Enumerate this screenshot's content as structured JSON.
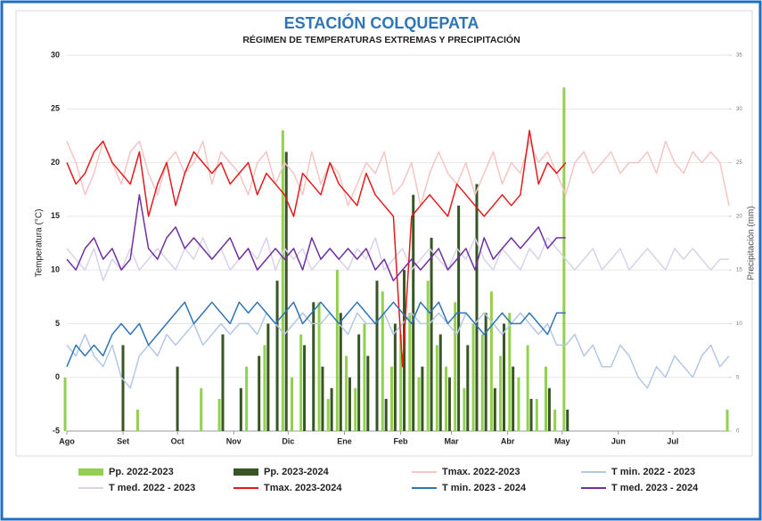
{
  "chart_data": {
    "type": "line",
    "title": "ESTACIÓN COLQUEPATA",
    "subtitle": "RÉGIMEN DE TEMPERATURAS EXTREMAS Y PRECIPITACIÓN",
    "y_label": "Temperatura (°C)",
    "y2_label": "Precipitación (mm)",
    "x": [
      0,
      5,
      10,
      15,
      20,
      25,
      30,
      35,
      40,
      45,
      50,
      55,
      60,
      65,
      70,
      75,
      80,
      85,
      90,
      95,
      100,
      105,
      110,
      115,
      120,
      125,
      130,
      135,
      140,
      145,
      150,
      155,
      160,
      165,
      170,
      175,
      180,
      185,
      190,
      195,
      200,
      205,
      210,
      215,
      220,
      225,
      230,
      235,
      240,
      245,
      250,
      255,
      260,
      265,
      270,
      275,
      280,
      285,
      290,
      295,
      300,
      305,
      310,
      315,
      320,
      325,
      330,
      335,
      340,
      345,
      350,
      355,
      360,
      365
    ],
    "xlim": [
      0,
      365
    ],
    "xticks": [
      {
        "value": 0,
        "label": "Ago"
      },
      {
        "value": 31,
        "label": "Set"
      },
      {
        "value": 61,
        "label": "Oct"
      },
      {
        "value": 92,
        "label": "Nov"
      },
      {
        "value": 122,
        "label": "Dic"
      },
      {
        "value": 153,
        "label": "Ene"
      },
      {
        "value": 184,
        "label": "Feb"
      },
      {
        "value": 212,
        "label": "Mar"
      },
      {
        "value": 243,
        "label": "Abr"
      },
      {
        "value": 273,
        "label": "May"
      },
      {
        "value": 304,
        "label": "Jun"
      },
      {
        "value": 334,
        "label": "Jul"
      }
    ],
    "ylim": [
      -5,
      30
    ],
    "yticks": [
      -5,
      0,
      5,
      10,
      15,
      20,
      25,
      30
    ],
    "y2lim": [
      0,
      35
    ],
    "y2ticks": [
      0,
      5,
      10,
      15,
      20,
      25,
      30,
      35
    ],
    "grid": true,
    "series": [
      {
        "name": "Pp. 2022-2023",
        "type": "bar",
        "axis": "y2",
        "color": "#92d050",
        "values": [
          5,
          0,
          0,
          0,
          0,
          0,
          0,
          0,
          2,
          0,
          0,
          0,
          0,
          0,
          0,
          4,
          0,
          3,
          0,
          0,
          6,
          0,
          8,
          0,
          28,
          5,
          9,
          0,
          12,
          3,
          15,
          7,
          4,
          10,
          0,
          13,
          6,
          9,
          11,
          5,
          14,
          8,
          6,
          12,
          4,
          10,
          9,
          13,
          7,
          11,
          5,
          8,
          3,
          6,
          2,
          32,
          0,
          0,
          0,
          0,
          0,
          0,
          0,
          0,
          0,
          0,
          0,
          0,
          0,
          0,
          0,
          0,
          0,
          2
        ]
      },
      {
        "name": "Pp. 2023-2024",
        "type": "bar",
        "axis": "y2",
        "color": "#375623",
        "values": [
          0,
          0,
          0,
          0,
          0,
          0,
          8,
          0,
          0,
          0,
          0,
          0,
          6,
          0,
          0,
          0,
          0,
          9,
          0,
          4,
          0,
          7,
          10,
          14,
          26,
          0,
          8,
          12,
          6,
          4,
          11,
          5,
          9,
          7,
          14,
          3,
          10,
          15,
          22,
          6,
          18,
          9,
          5,
          21,
          8,
          23,
          11,
          4,
          10,
          6,
          0,
          3,
          0,
          4,
          0,
          2,
          null,
          null,
          null,
          null,
          null,
          null,
          null,
          null,
          null,
          null,
          null,
          null,
          null,
          null,
          null,
          null,
          null,
          null
        ]
      },
      {
        "name": "Tmax. 2022-2023",
        "color": "#f7c4c4",
        "values": [
          22,
          20,
          17,
          19,
          22,
          20,
          18,
          21,
          22,
          19,
          17,
          20,
          21,
          19,
          20,
          22,
          18,
          21,
          20,
          19,
          17,
          20,
          21,
          18,
          20,
          19,
          17,
          21,
          18,
          20,
          19,
          16,
          18,
          20,
          19,
          21,
          17,
          18,
          20,
          16,
          19,
          21,
          19,
          18,
          20,
          17,
          19,
          21,
          18,
          20,
          19,
          22,
          20,
          21,
          19,
          17,
          20,
          21,
          19,
          20,
          21,
          19,
          20,
          20,
          21,
          19,
          22,
          20,
          19,
          21,
          20,
          21,
          20,
          16
        ]
      },
      {
        "name": "T min. 2022 - 2023",
        "color": "#b4c7e7",
        "values": [
          3,
          2,
          4,
          2,
          1,
          3,
          0,
          -1,
          2,
          3,
          2,
          4,
          3,
          4,
          5,
          3,
          4,
          5,
          4,
          5,
          5,
          4,
          6,
          5,
          4,
          5,
          6,
          5,
          5,
          6,
          5,
          4,
          6,
          5,
          5,
          6,
          4,
          5,
          6,
          5,
          5,
          6,
          5,
          4,
          6,
          5,
          6,
          5,
          4,
          5,
          6,
          5,
          4,
          5,
          3,
          3,
          4,
          2,
          3,
          1,
          1,
          3,
          2,
          0,
          -1,
          1,
          0,
          2,
          1,
          0,
          2,
          3,
          1,
          2
        ]
      },
      {
        "name": "T med. 2022 - 2023",
        "color": "#d9d2e9",
        "values": [
          12,
          11,
          10,
          12,
          9,
          11,
          10,
          12,
          10,
          11,
          12,
          11,
          10,
          12,
          11,
          13,
          11,
          12,
          10,
          11,
          12,
          11,
          13,
          10,
          12,
          11,
          12,
          10,
          11,
          12,
          11,
          10,
          12,
          11,
          13,
          10,
          11,
          12,
          10,
          11,
          12,
          11,
          10,
          12,
          11,
          13,
          11,
          10,
          12,
          11,
          10,
          12,
          11,
          13,
          12,
          11,
          10,
          11,
          12,
          10,
          11,
          12,
          10,
          11,
          12,
          11,
          10,
          12,
          11,
          12,
          11,
          10,
          11,
          11
        ]
      },
      {
        "name": "Tmax. 2023-2024",
        "color": "#e31a1c",
        "values": [
          20,
          18,
          19,
          21,
          22,
          20,
          19,
          18,
          21,
          15,
          18,
          20,
          16,
          19,
          21,
          20,
          19,
          20,
          18,
          19,
          20,
          17,
          19,
          18,
          17,
          15,
          19,
          18,
          17,
          20,
          18,
          17,
          16,
          19,
          17,
          16,
          15,
          1,
          15,
          16,
          17,
          16,
          15,
          18,
          17,
          16,
          15,
          16,
          17,
          16,
          17,
          23,
          18,
          20,
          19,
          20,
          null,
          null,
          null,
          null,
          null,
          null,
          null,
          null,
          null,
          null,
          null,
          null,
          null,
          null,
          null,
          null,
          null,
          null
        ]
      },
      {
        "name": "T min. 2023 - 2024",
        "color": "#2e75b6",
        "values": [
          1,
          3,
          2,
          3,
          2,
          4,
          5,
          4,
          5,
          3,
          4,
          5,
          6,
          7,
          5,
          6,
          7,
          6,
          5,
          7,
          6,
          7,
          6,
          5,
          6,
          7,
          5,
          6,
          7,
          6,
          5,
          6,
          7,
          6,
          5,
          6,
          7,
          6,
          5,
          7,
          6,
          7,
          5,
          6,
          6,
          5,
          4,
          5,
          6,
          5,
          5,
          6,
          5,
          4,
          6,
          6,
          null,
          null,
          null,
          null,
          null,
          null,
          null,
          null,
          null,
          null,
          null,
          null,
          null,
          null,
          null,
          null,
          null,
          null
        ]
      },
      {
        "name": "T med. 2023 - 2024",
        "color": "#7030a0",
        "values": [
          11,
          10,
          12,
          13,
          11,
          12,
          10,
          11,
          17,
          12,
          11,
          13,
          14,
          12,
          13,
          12,
          11,
          12,
          13,
          11,
          12,
          10,
          11,
          12,
          11,
          12,
          10,
          13,
          11,
          12,
          11,
          12,
          11,
          12,
          10,
          11,
          9,
          10,
          11,
          10,
          11,
          12,
          10,
          11,
          12,
          10,
          13,
          11,
          12,
          13,
          12,
          13,
          14,
          12,
          13,
          13,
          null,
          null,
          null,
          null,
          null,
          null,
          null,
          null,
          null,
          null,
          null,
          null,
          null,
          null,
          null,
          null,
          null,
          null
        ]
      }
    ]
  }
}
